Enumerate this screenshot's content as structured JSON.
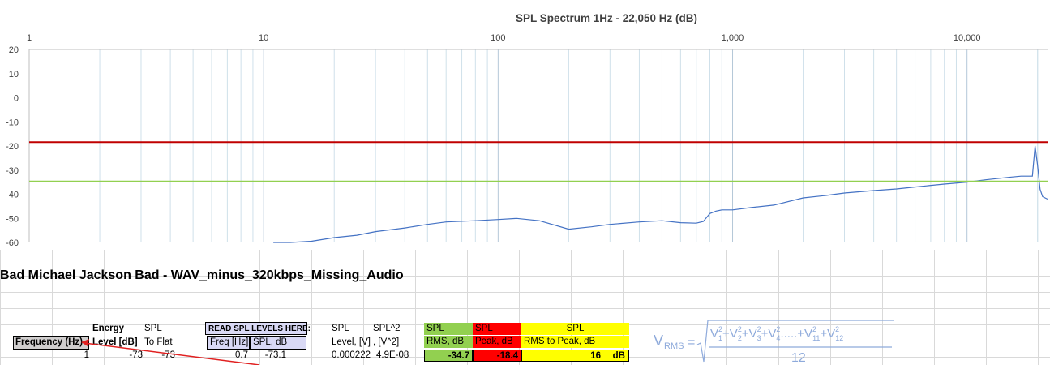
{
  "chart_data": {
    "type": "line",
    "title": "SPL Spectrum 1Hz - 22,050 Hz (dB)",
    "x_scale": "log",
    "xlim": [
      1,
      22050
    ],
    "ylim": [
      -60,
      20
    ],
    "x_ticks": [
      1,
      10,
      100,
      1000,
      10000
    ],
    "x_tick_labels": [
      "1",
      "10",
      "100",
      "1,000",
      "10,000"
    ],
    "y_ticks": [
      20,
      10,
      0,
      -10,
      -20,
      -30,
      -40,
      -50,
      -60
    ],
    "y_tick_labels": [
      "20",
      "10",
      "0",
      "-10",
      "-20",
      "-30",
      "-40",
      "-50",
      "-60"
    ],
    "grid": "vertical minor log gridlines",
    "series": [
      {
        "color": "#4472c4",
        "x": [
          11,
          13,
          16,
          20,
          25,
          30,
          40,
          50,
          60,
          80,
          100,
          120,
          150,
          200,
          250,
          300,
          400,
          500,
          600,
          700,
          750,
          800,
          850,
          900,
          1000,
          1200,
          1500,
          2000,
          2500,
          3000,
          4000,
          5000,
          6000,
          8000,
          10000,
          12000,
          15000,
          17000,
          19000,
          19500,
          20000,
          20500,
          21000,
          22050
        ],
        "y": [
          -61,
          -60,
          -59.5,
          -58,
          -57,
          -55.5,
          -54,
          -52.5,
          -51.5,
          -51,
          -50.5,
          -50,
          -51,
          -54.5,
          -53.5,
          -52.5,
          -51.5,
          -51,
          -51.8,
          -52,
          -51.3,
          -48,
          -47,
          -46.5,
          -46.5,
          -45.5,
          -44.5,
          -41.5,
          -40.5,
          -39.5,
          -38.5,
          -37.8,
          -37,
          -35.8,
          -35,
          -34,
          -33,
          -32.5,
          -32.5,
          -20,
          -28,
          -38,
          -41,
          -42
        ]
      },
      {
        "color": "#c00000",
        "x": [
          1,
          22050
        ],
        "y": [
          -18.4,
          -18.4
        ]
      },
      {
        "color": "#92d050",
        "x": [
          1,
          22050
        ],
        "y": [
          -34.7,
          -34.7
        ]
      }
    ]
  },
  "sheet": {
    "title": "Bad Michael Jackson Bad - WAV_minus_320kbps_Missing_Audio",
    "headers": {
      "energy": "Energy",
      "spl_a": "SPL",
      "frequency": "Frequency (Hz)",
      "level_db": "Level [dB]",
      "to_flat": "To Flat",
      "read_here": "READ SPL LEVELS HERE:",
      "freq_hz": "Freq [Hz]",
      "spl_db": "SPL, dB",
      "spl_b": "SPL",
      "spl_sq": "SPL^2",
      "level_v": "Level, [V]",
      "v_sq": ", [V^2]",
      "green_top": "SPL",
      "green_bottom": "RMS, dB",
      "red_top": "SPL",
      "red_bottom": "Peak, dB",
      "yellow_top": "SPL",
      "yellow_bottom": "RMS to Peak, dB"
    },
    "row": {
      "frequency": "1",
      "level": "-73",
      "to_flat": "-73",
      "freq": "0.7",
      "spl": "-73.1",
      "level_v": "0.000222",
      "v_sq": "4.9E-08",
      "rms": "-34.7",
      "peak": "-18.4",
      "rms_to_peak": "16",
      "unit": "dB"
    },
    "formula": {
      "lhs": "V",
      "lhs_sub": "RMS",
      "eq": "=",
      "denominator": "12"
    }
  }
}
